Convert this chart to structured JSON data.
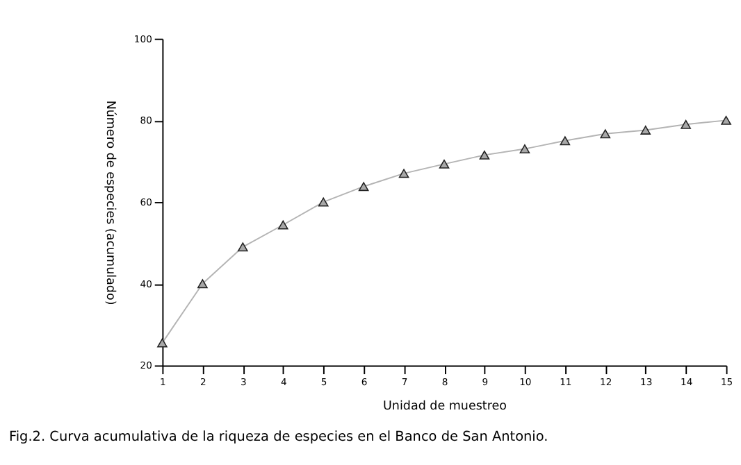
{
  "chart_data": {
    "type": "line",
    "xlabel": "Unidad de muestreo",
    "ylabel": "Número de especies (acumulado)",
    "x": [
      1,
      2,
      3,
      4,
      5,
      6,
      7,
      8,
      9,
      10,
      11,
      12,
      13,
      14,
      15
    ],
    "series": [
      {
        "color": "#b4b4b4",
        "values": [
          25.5,
          40,
          49,
          54.4,
          60,
          63.8,
          67,
          69.3,
          71.5,
          73,
          75,
          76.7,
          77.6,
          79,
          80
        ]
      }
    ],
    "xlim": [
      1,
      15
    ],
    "xticks": [
      1,
      2,
      3,
      4,
      5,
      6,
      7,
      8,
      9,
      10,
      11,
      12,
      13,
      14,
      15
    ],
    "ylim": [
      20,
      100
    ],
    "yticks": [
      20,
      40,
      60,
      80,
      100
    ],
    "grid": false,
    "legend": false,
    "marker": "triangle",
    "line_style": "solid",
    "annotations": [
      "Fig.2. Curva acumulativa de la riqueza de especies en el Banco de San Antonio."
    ]
  }
}
